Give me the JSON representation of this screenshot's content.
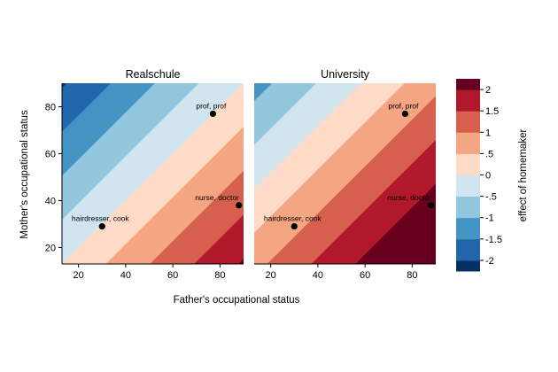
{
  "chart_data": {
    "type": "heatmap",
    "xlabel": "Father's occupational status",
    "ylabel": "Mother's occupational status",
    "xlim": [
      13,
      90
    ],
    "ylim": [
      13,
      90
    ],
    "xticks": [
      20,
      40,
      60,
      80
    ],
    "yticks": [
      20,
      40,
      60,
      80
    ],
    "grid": false,
    "panels": [
      {
        "title": "Realschule",
        "effect_formula": {
          "intercept": 0.0,
          "father_coef": 0.0267,
          "mother_coef": -0.0267
        },
        "points": [
          {
            "label": "prof, prof",
            "x": 77,
            "y": 77
          },
          {
            "label": "nurse, doctor",
            "x": 88,
            "y": 38
          },
          {
            "label": "hairdresser, cook",
            "x": 30,
            "y": 29
          }
        ]
      },
      {
        "title": "University",
        "effect_formula": {
          "intercept": 0.85,
          "father_coef": 0.0267,
          "mother_coef": -0.0267
        },
        "points": [
          {
            "label": "prof, prof",
            "x": 77,
            "y": 77
          },
          {
            "label": "nurse, doctor",
            "x": 88,
            "y": 38
          },
          {
            "label": "hairdresser, cook",
            "x": 30,
            "y": 29
          }
        ]
      }
    ],
    "legend": {
      "title": "effect of homemaker",
      "placement": "right",
      "breaks": [
        -2.25,
        -2,
        -1.5,
        -1,
        -0.5,
        0,
        0.5,
        1,
        1.5,
        2,
        2.25
      ],
      "tick_labels": [
        "-2",
        "-1.5",
        "-1",
        "-.5",
        "0",
        ".5",
        "1",
        "1.5",
        "2"
      ],
      "tick_values": [
        -2,
        -1.5,
        -1,
        -0.5,
        0,
        0.5,
        1,
        1.5,
        2
      ],
      "colors": [
        "#053061",
        "#2166ac",
        "#4393c3",
        "#92c5de",
        "#d1e5f0",
        "#fddbc7",
        "#f4a582",
        "#d6604d",
        "#b2182b",
        "#67001f"
      ]
    }
  }
}
